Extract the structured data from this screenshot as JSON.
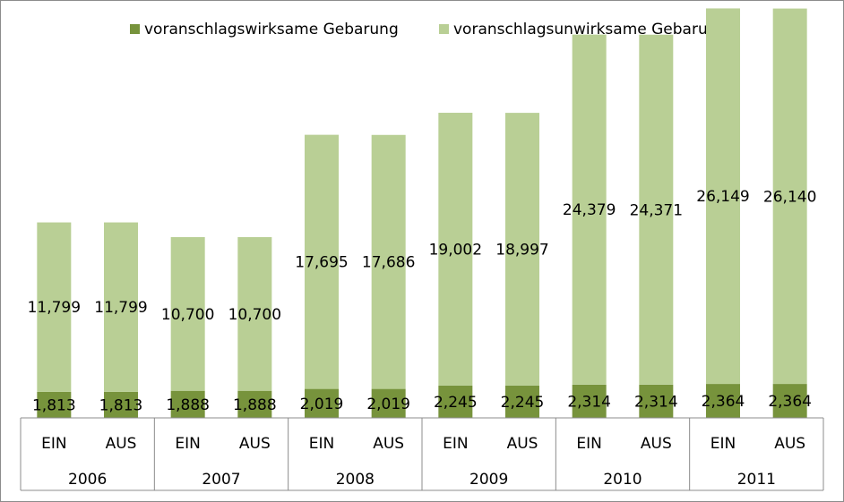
{
  "chart_data": {
    "type": "bar",
    "stacked": true,
    "categories": [
      "EIN",
      "AUS",
      "EIN",
      "AUS",
      "EIN",
      "AUS",
      "EIN",
      "AUS",
      "EIN",
      "AUS",
      "EIN",
      "AUS"
    ],
    "groups": [
      "2006",
      "2007",
      "2008",
      "2009",
      "2010",
      "2011"
    ],
    "series": [
      {
        "name": "voranschlagswirksame Gebarung",
        "color": "#77933c",
        "values": [
          1813,
          1813,
          1888,
          1888,
          2019,
          2019,
          2245,
          2245,
          2314,
          2314,
          2364,
          2364
        ],
        "labels": [
          "1,813",
          "1,813",
          "1,888",
          "1,888",
          "2,019",
          "2,019",
          "2,245",
          "2,245",
          "2,314",
          "2,314",
          "2,364",
          "2,364"
        ]
      },
      {
        "name": "voranschlagsunwirksame Gebarung",
        "color": "#b9cf95",
        "values": [
          11799,
          11799,
          10700,
          10700,
          17695,
          17686,
          19002,
          18997,
          24379,
          24371,
          26149,
          26140
        ],
        "labels": [
          "11,799",
          "11,799",
          "10,700",
          "10,700",
          "17,695",
          "17,686",
          "19,002",
          "18,997",
          "24,379",
          "24,371",
          "26,149",
          "26,140"
        ]
      }
    ],
    "ylim": [
      0,
      29100
    ],
    "grid": false,
    "legend_position": "top"
  }
}
